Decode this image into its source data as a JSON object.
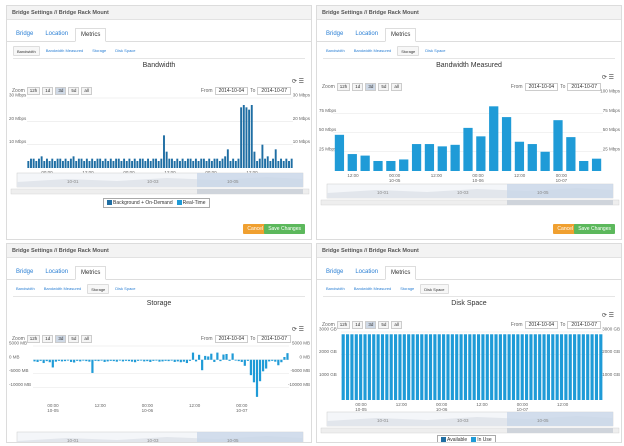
{
  "window": {
    "title": "Bridge Settings // Bridge Rack Mount"
  },
  "tabs": [
    "Bridge",
    "Location",
    "Metrics"
  ],
  "subtabs": [
    "Bandwidth",
    "Bandwidth Measured",
    "Storage",
    "Disk Space"
  ],
  "range": {
    "zoom_label": "Zoom",
    "buttons": [
      "12h",
      "1d",
      "3d",
      "5d",
      "all"
    ],
    "selected": "3d",
    "from_label": "From",
    "to_label": "To",
    "from": "2014-10-04",
    "to": "2014-10-07"
  },
  "buttons": {
    "cancel": "Cancel",
    "save": "Save Changes"
  },
  "colors": {
    "bar": "#1f9bd7",
    "bar_dark": "#1f6ea3",
    "nav_fill": "#c9d7e8",
    "save": "#5cb85c",
    "cancel": "#f0a030"
  },
  "chart_data": [
    {
      "type": "bar",
      "title": "Bandwidth",
      "active_subtab": "Bandwidth",
      "y_ticks": [
        "30 Mbps",
        "20 Mbps",
        "10 Mbps"
      ],
      "y_ticks_right": [
        "30 Mbps",
        "20 Mbps",
        "10 Mbps"
      ],
      "ylim": [
        0,
        30
      ],
      "x_ticks": [
        "00:00",
        "12:00",
        "00:00",
        "12:00",
        "00:00",
        "12:00"
      ],
      "x_ticks_sub": [
        "10-05",
        "",
        "10-06",
        "",
        "10-07",
        ""
      ],
      "nav_ticks": [
        "10-01",
        "10-03",
        "10-05"
      ],
      "legend": [
        "Background + On-Demand",
        "Real-Time"
      ],
      "series": [
        {
          "name": "Background + On-Demand",
          "values": [
            3,
            4,
            4,
            3,
            4,
            5,
            3,
            4,
            3,
            4,
            3,
            4,
            4,
            3,
            4,
            3,
            4,
            5,
            3,
            4,
            4,
            3,
            4,
            3,
            4,
            3,
            4,
            4,
            3,
            4,
            3,
            4,
            3,
            4,
            4,
            3,
            4,
            3,
            4,
            3,
            4,
            3,
            4,
            4,
            3,
            4,
            3,
            4,
            4,
            3,
            4,
            14,
            7,
            4,
            4,
            3,
            4,
            3,
            4,
            3,
            4,
            4,
            3,
            4,
            3,
            4,
            4,
            3,
            4,
            3,
            4,
            4,
            3,
            4,
            5,
            8,
            3,
            4,
            3,
            4,
            26,
            27,
            26,
            25,
            27,
            7,
            3,
            4,
            10,
            4,
            5,
            3,
            4,
            8,
            3,
            4,
            3,
            4,
            3,
            4
          ]
        }
      ]
    },
    {
      "type": "bar",
      "title": "Bandwidth Measured",
      "active_subtab": "Storage",
      "y_ticks": [
        "75 Mbps",
        "50 Mbps",
        "25 Mbps"
      ],
      "y_ticks_right": [
        "100 Mbps",
        "75 Mbps",
        "50 Mbps",
        "25 Mbps"
      ],
      "ylim": [
        0,
        100
      ],
      "x_ticks": [
        "12:00",
        "00:00",
        "12:00",
        "00:00",
        "12:00",
        "00:00"
      ],
      "x_ticks_sub": [
        "",
        "10-05",
        "",
        "10-06",
        "",
        "10-07"
      ],
      "nav_ticks": [
        "10-01",
        "10-03",
        "10-05"
      ],
      "series": [
        {
          "name": "",
          "values": [
            47,
            22,
            20,
            13,
            13,
            15,
            35,
            35,
            32,
            34,
            56,
            45,
            84,
            70,
            38,
            35,
            25,
            66,
            44,
            13,
            16
          ]
        }
      ]
    },
    {
      "type": "bar",
      "title": "Storage",
      "active_subtab": "Storage",
      "y_ticks": [
        "5000 MB",
        "0 MB",
        "-5000 MB",
        "-10000 MB"
      ],
      "y_ticks_right": [
        "5000 MB",
        "0 MB",
        "-5000 MB",
        "-10000 MB"
      ],
      "ylim": [
        -15000,
        5000
      ],
      "x_ticks": [
        "00:00",
        "12:00",
        "00:00",
        "12:00",
        "00:00"
      ],
      "x_ticks_sub": [
        "10-05",
        "",
        "10-06",
        "",
        "10-07"
      ],
      "nav_ticks": [
        "10-01",
        "10-03",
        "10-05"
      ],
      "series": [
        {
          "name": "",
          "values": [
            -600,
            -800,
            -400,
            -1200,
            -500,
            -900,
            -2800,
            -700,
            -400,
            -600,
            -500,
            -300,
            -800,
            -1000,
            -400,
            -600,
            -300,
            -500,
            -700,
            -4800,
            -400,
            -500,
            -300,
            -800,
            -600,
            -400,
            -500,
            -700,
            -300,
            -600,
            -400,
            -500,
            -700,
            -900,
            -400,
            -300,
            -600,
            -500,
            -800,
            -400,
            -300,
            -700,
            -600,
            -400,
            -500,
            -300,
            -800,
            -600,
            -900,
            -700,
            -1200,
            -400,
            2600,
            -600,
            1800,
            -3800,
            1400,
            1200,
            2200,
            -800,
            2600,
            -500,
            1900,
            2100,
            -400,
            2300,
            -300,
            -500,
            -800,
            -2200,
            -400,
            -5600,
            -8200,
            -13500,
            -7800,
            -4200,
            -3200,
            -600,
            -400,
            -700,
            -2000,
            -900,
            1000,
            2400
          ]
        }
      ]
    },
    {
      "type": "bar",
      "title": "Disk Space",
      "active_subtab": "Disk Space",
      "y_ticks": [
        "3000 GB",
        "2000 GB",
        "1000 GB"
      ],
      "y_ticks_right": [
        "3000 GB",
        "2000 GB",
        "1000 GB"
      ],
      "ylim": [
        0,
        3000
      ],
      "x_ticks": [
        "00:00",
        "12:00",
        "00:00",
        "12:00",
        "00:00",
        "12:00"
      ],
      "x_ticks_sub": [
        "10-05",
        "",
        "10-06",
        "",
        "10-07",
        ""
      ],
      "nav_ticks": [
        "10-01",
        "10-03",
        "10-05"
      ],
      "legend": [
        "Available",
        "In Use"
      ],
      "series": [
        {
          "name": "Available",
          "values": [
            2900,
            2900,
            2900,
            2900,
            2900,
            2900,
            2900,
            2900,
            2900,
            2900,
            2900,
            2900,
            2900,
            2900,
            2900,
            2900,
            2900,
            2900,
            2900,
            2900,
            2900,
            2900,
            2900,
            2900,
            2900,
            2900,
            2900,
            2900,
            2900,
            2900,
            2900,
            2900,
            2900,
            2900,
            2900,
            2900,
            2900,
            2900,
            2900,
            2900,
            2900,
            2900,
            2900,
            2900,
            2900,
            2900,
            2900,
            2900,
            2900,
            2900,
            2900,
            2900,
            2900,
            2900,
            2900,
            2900,
            2900,
            2900,
            2900,
            2900
          ]
        }
      ]
    }
  ]
}
